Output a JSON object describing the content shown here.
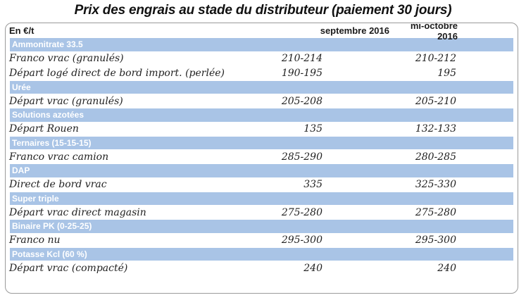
{
  "title": "Prix des engrais au stade du distributeur (paiement 30 jours)",
  "header": {
    "unit": "En €/t",
    "col1": "septembre 2016",
    "col2": "mi-octobre 2016"
  },
  "sections": [
    {
      "name": "Ammonitrate 33.5",
      "rows": [
        {
          "label": "Franco vrac (granulés)",
          "sep": "210-214",
          "oct": "210-212"
        },
        {
          "label": "Départ logé direct de bord import. (perlée)",
          "sep": "190-195",
          "oct": "195"
        }
      ]
    },
    {
      "name": "Urée",
      "rows": [
        {
          "label": "Départ vrac (granulés)",
          "sep": "205-208",
          "oct": "205-210"
        }
      ]
    },
    {
      "name": "Solutions azotées",
      "rows": [
        {
          "label": "Départ Rouen",
          "sep": "135",
          "oct": "132-133"
        }
      ]
    },
    {
      "name": "Ternaires (15-15-15)",
      "rows": [
        {
          "label": "Franco vrac camion",
          "sep": "285-290",
          "oct": "280-285"
        }
      ]
    },
    {
      "name": "DAP",
      "rows": [
        {
          "label": "Direct de bord vrac",
          "sep": "335",
          "oct": "325-330"
        }
      ]
    },
    {
      "name": "Super triple",
      "rows": [
        {
          "label": "Départ vrac direct magasin",
          "sep": "275-280",
          "oct": "275-280"
        }
      ]
    },
    {
      "name": "Binaire PK (0-25-25)",
      "rows": [
        {
          "label": "Franco nu",
          "sep": "295-300",
          "oct": "295-300"
        }
      ]
    },
    {
      "name": "Potasse Kcl (60 %)",
      "rows": [
        {
          "label": "Départ vrac (compacté)",
          "sep": "240",
          "oct": "240"
        }
      ]
    }
  ]
}
